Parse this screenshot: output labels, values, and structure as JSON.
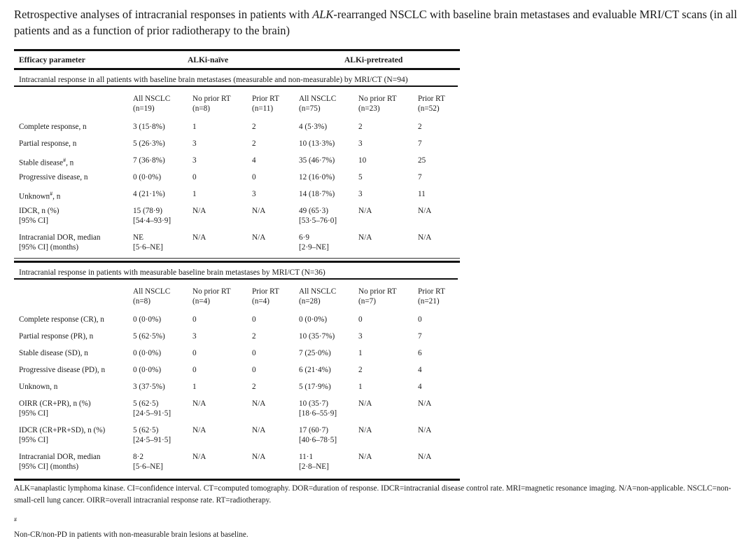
{
  "title_pre": "Retrospective analyses of intracranial responses in patients with ",
  "title_em": "ALK",
  "title_post": "-rearranged NSCLC with baseline brain metastases and evaluable MRI/CT scans (in all patients and as a function of prior radiotherapy to the brain)",
  "header": {
    "param": "Efficacy parameter",
    "naive": "ALKi-naïve",
    "pretreated": "ALKi-pretreated"
  },
  "sections": [
    {
      "title": "Intracranial response in all patients with baseline brain metastases (measurable and non-measurable) by MRI/CT (N=94)",
      "columns": [
        [
          "All NSCLC",
          "(n=19)"
        ],
        [
          "No prior RT",
          "(n=8)"
        ],
        [
          "Prior RT",
          "(n=11)"
        ],
        [
          "All NSCLC",
          "(n=75)"
        ],
        [
          "No prior RT",
          "(n=23)"
        ],
        [
          "Prior RT",
          "(n=52)"
        ]
      ],
      "rows": [
        {
          "label": [
            "Complete response, n"
          ],
          "cells": [
            [
              "3 (15·8%)"
            ],
            [
              "1"
            ],
            [
              "2"
            ],
            [
              "4 (5·3%)"
            ],
            [
              "2"
            ],
            [
              "2"
            ]
          ]
        },
        {
          "label": [
            "Partial response, n"
          ],
          "cells": [
            [
              "5 (26·3%)"
            ],
            [
              "3"
            ],
            [
              "2"
            ],
            [
              "10 (13·3%)"
            ],
            [
              "3"
            ],
            [
              "7"
            ]
          ]
        },
        {
          "label": [
            "Stable disease"
          ],
          "sup": "#",
          "label_suffix": ", n",
          "cells": [
            [
              "7 (36·8%)"
            ],
            [
              "3"
            ],
            [
              "4"
            ],
            [
              "35 (46·7%)"
            ],
            [
              "10"
            ],
            [
              "25"
            ]
          ]
        },
        {
          "label": [
            "Progressive disease, n"
          ],
          "cells": [
            [
              "0 (0·0%)"
            ],
            [
              "0"
            ],
            [
              "0"
            ],
            [
              "12 (16·0%)"
            ],
            [
              "5"
            ],
            [
              "7"
            ]
          ]
        },
        {
          "label": [
            "Unknown"
          ],
          "sup": "#",
          "label_suffix": ", n",
          "cells": [
            [
              "4 (21·1%)"
            ],
            [
              "1"
            ],
            [
              "3"
            ],
            [
              "14 (18·7%)"
            ],
            [
              "3"
            ],
            [
              "11"
            ]
          ]
        },
        {
          "label": [
            "IDCR, n (%)",
            "[95% CI]"
          ],
          "cells": [
            [
              "15 (78·9)",
              "[54·4–93·9]"
            ],
            [
              "N/A"
            ],
            [
              "N/A"
            ],
            [
              "49 (65·3)",
              "[53·5–76·0]"
            ],
            [
              "N/A"
            ],
            [
              "N/A"
            ]
          ]
        },
        {
          "label": [
            "Intracranial DOR, median",
            "[95% CI] (months)"
          ],
          "cells": [
            [
              "NE",
              "[5·6–NE]"
            ],
            [
              "N/A"
            ],
            [
              "N/A"
            ],
            [
              "6·9",
              "[2·9–NE]"
            ],
            [
              "N/A"
            ],
            [
              "N/A"
            ]
          ]
        }
      ]
    },
    {
      "title": "Intracranial response in patients with measurable baseline brain metastases by MRI/CT (N=36)",
      "columns": [
        [
          "All NSCLC",
          "(n=8)"
        ],
        [
          "No prior RT",
          "(n=4)"
        ],
        [
          "Prior RT",
          "(n=4)"
        ],
        [
          "All NSCLC",
          "(n=28)"
        ],
        [
          "No prior RT",
          "(n=7)"
        ],
        [
          "Prior RT",
          "(n=21)"
        ]
      ],
      "rows": [
        {
          "label": [
            "Complete response (CR), n"
          ],
          "cells": [
            [
              "0 (0·0%)"
            ],
            [
              "0"
            ],
            [
              "0"
            ],
            [
              "0 (0·0%)"
            ],
            [
              "0"
            ],
            [
              "0"
            ]
          ]
        },
        {
          "label": [
            "Partial response (PR), n"
          ],
          "cells": [
            [
              "5 (62·5%)"
            ],
            [
              "3"
            ],
            [
              "2"
            ],
            [
              "10 (35·7%)"
            ],
            [
              "3"
            ],
            [
              "7"
            ]
          ]
        },
        {
          "label": [
            "Stable disease (SD), n"
          ],
          "cells": [
            [
              "0 (0·0%)"
            ],
            [
              "0"
            ],
            [
              "0"
            ],
            [
              "7 (25·0%)"
            ],
            [
              "1"
            ],
            [
              "6"
            ]
          ]
        },
        {
          "label": [
            "Progressive disease (PD), n"
          ],
          "cells": [
            [
              "0 (0·0%)"
            ],
            [
              "0"
            ],
            [
              "0"
            ],
            [
              "6 (21·4%)"
            ],
            [
              "2"
            ],
            [
              "4"
            ]
          ]
        },
        {
          "label": [
            "Unknown, n"
          ],
          "cells": [
            [
              "3 (37·5%)"
            ],
            [
              "1"
            ],
            [
              "2"
            ],
            [
              "5 (17·9%)"
            ],
            [
              "1"
            ],
            [
              "4"
            ]
          ]
        },
        {
          "label": [
            "OIRR (CR+PR), n (%)",
            "[95% CI]"
          ],
          "cells": [
            [
              "5 (62·5)",
              "[24·5–91·5]"
            ],
            [
              "N/A"
            ],
            [
              "N/A"
            ],
            [
              "10 (35·7)",
              "[18·6–55·9]"
            ],
            [
              "N/A"
            ],
            [
              "N/A"
            ]
          ]
        },
        {
          "label": [
            "IDCR (CR+PR+SD), n (%)",
            "[95% CI]"
          ],
          "cells": [
            [
              "5 (62·5)",
              "[24·5–91·5]"
            ],
            [
              "N/A"
            ],
            [
              "N/A"
            ],
            [
              "17 (60·7)",
              "[40·6–78·5]"
            ],
            [
              "N/A"
            ],
            [
              "N/A"
            ]
          ]
        },
        {
          "label": [
            "Intracranial DOR, median",
            "[95% CI] (months)"
          ],
          "cells": [
            [
              "8·2",
              "[5·6–NE]"
            ],
            [
              "N/A"
            ],
            [
              "N/A"
            ],
            [
              "11·1",
              "[2·8–NE]"
            ],
            [
              "N/A"
            ],
            [
              "N/A"
            ]
          ]
        }
      ]
    }
  ],
  "footnote_abbrev": "ALK=anaplastic lymphoma kinase. CI=confidence interval. CT=computed tomography. DOR=duration of response. IDCR=intracranial disease control rate. MRI=magnetic resonance imaging. N/A=non-applicable. NSCLC=non-small-cell lung cancer. OIRR=overall intracranial response rate. RT=radiotherapy.",
  "footnote_mark": "#",
  "footnote_hash": "Non-CR/non-PD in patients with non-measurable brain lesions at baseline."
}
